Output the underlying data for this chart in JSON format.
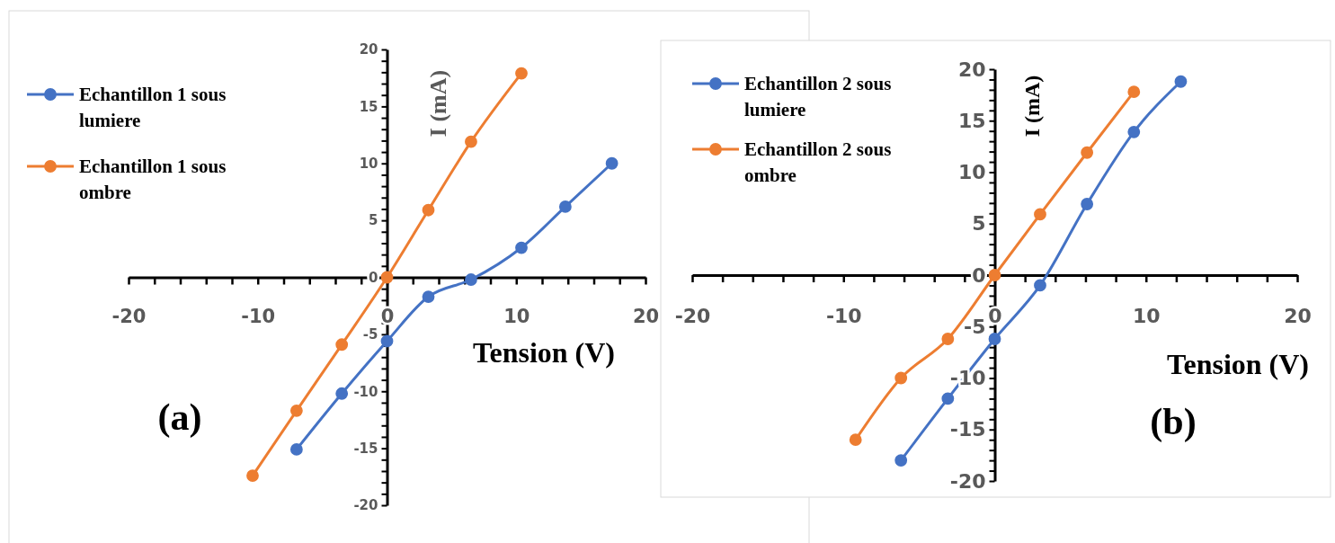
{
  "chart_data": [
    {
      "type": "line",
      "xlabel": "Tension (V)",
      "ylabel": "I (mA)",
      "annotations": [
        "(a)"
      ],
      "legend": "top left",
      "marker": "circle",
      "line_style": "solid",
      "grid": false,
      "xlim": [
        -20,
        20
      ],
      "ylim": [
        -20,
        20
      ],
      "xticks": [
        -20,
        {
          "value": -18,
          "label": null
        },
        {
          "value": -16,
          "label": null
        },
        {
          "value": -14,
          "label": null
        },
        {
          "value": -12,
          "label": null
        },
        -10,
        {
          "value": -8,
          "label": null
        },
        {
          "value": -6,
          "label": null
        },
        {
          "value": -4,
          "label": null
        },
        {
          "value": -2,
          "label": null
        },
        0,
        {
          "value": 2,
          "label": null
        },
        {
          "value": 4,
          "label": null
        },
        {
          "value": 6,
          "label": null
        },
        {
          "value": 8,
          "label": null
        },
        10,
        {
          "value": 12,
          "label": null
        },
        {
          "value": 14,
          "label": null
        },
        {
          "value": 16,
          "label": null
        },
        {
          "value": 18,
          "label": null
        },
        20
      ],
      "yticks": [
        -20,
        {
          "value": -19,
          "label": null
        },
        {
          "value": -18,
          "label": null
        },
        {
          "value": -17,
          "label": null
        },
        {
          "value": -16,
          "label": null
        },
        -15,
        {
          "value": -14,
          "label": null
        },
        {
          "value": -13,
          "label": null
        },
        {
          "value": -12,
          "label": null
        },
        {
          "value": -11,
          "label": null
        },
        -10,
        {
          "value": -9,
          "label": null
        },
        {
          "value": -8,
          "label": null
        },
        {
          "value": -7,
          "label": null
        },
        {
          "value": -6,
          "label": null
        },
        -5,
        {
          "value": -4,
          "label": null
        },
        {
          "value": -3,
          "label": null
        },
        {
          "value": -2,
          "label": null
        },
        {
          "value": -1,
          "label": null
        },
        0,
        {
          "value": 1,
          "label": null
        },
        {
          "value": 2,
          "label": null
        },
        {
          "value": 3,
          "label": null
        },
        {
          "value": 4,
          "label": null
        },
        5,
        {
          "value": 6,
          "label": null
        },
        {
          "value": 7,
          "label": null
        },
        {
          "value": 8,
          "label": null
        },
        {
          "value": 9,
          "label": null
        },
        10,
        {
          "value": 11,
          "label": null
        },
        {
          "value": 12,
          "label": null
        },
        {
          "value": 13,
          "label": null
        },
        {
          "value": 14,
          "label": null
        },
        15,
        {
          "value": 16,
          "label": null
        },
        {
          "value": 17,
          "label": null
        },
        {
          "value": 18,
          "label": null
        },
        {
          "value": 19,
          "label": null
        },
        20
      ],
      "series": [
        {
          "name": "Echantillon 1 sous lumiere",
          "color": "#4472c4",
          "x": [
            -7,
            -3.5,
            0,
            3.2,
            6.5,
            10.4,
            13.8,
            17.4
          ],
          "values": [
            -15.1,
            -10.2,
            -5.6,
            -1.7,
            -0.2,
            2.6,
            6.2,
            10
          ]
        },
        {
          "name": "Echantillon 1 sous ombre",
          "color": "#ed7d31",
          "x": [
            -10.4,
            -7,
            -3.5,
            0,
            3.2,
            6.5,
            10.4
          ],
          "values": [
            -17.4,
            -11.7,
            -5.9,
            0,
            5.9,
            11.9,
            17.9
          ]
        }
      ]
    },
    {
      "type": "line",
      "xlabel": "Tension (V)",
      "ylabel": "I (mA)",
      "annotations": [
        "(b)"
      ],
      "legend": "top left",
      "marker": "circle",
      "line_style": "solid",
      "grid": false,
      "xlim": [
        -20,
        20
      ],
      "ylim": [
        -20,
        20
      ],
      "xticks": [
        -20,
        {
          "value": -18,
          "label": null
        },
        {
          "value": -16,
          "label": null
        },
        {
          "value": -14,
          "label": null
        },
        {
          "value": -12,
          "label": null
        },
        -10,
        {
          "value": -8,
          "label": null
        },
        {
          "value": -6,
          "label": null
        },
        {
          "value": -4,
          "label": null
        },
        {
          "value": -2,
          "label": null
        },
        0,
        {
          "value": 2,
          "label": null
        },
        {
          "value": 4,
          "label": null
        },
        {
          "value": 6,
          "label": null
        },
        {
          "value": 8,
          "label": null
        },
        10,
        {
          "value": 12,
          "label": null
        },
        {
          "value": 14,
          "label": null
        },
        {
          "value": 16,
          "label": null
        },
        {
          "value": 18,
          "label": null
        },
        20
      ],
      "yticks": [
        -20,
        {
          "value": -19,
          "label": null
        },
        {
          "value": -18,
          "label": null
        },
        {
          "value": -17,
          "label": null
        },
        {
          "value": -16,
          "label": null
        },
        -15,
        {
          "value": -14,
          "label": null
        },
        {
          "value": -13,
          "label": null
        },
        {
          "value": -12,
          "label": null
        },
        {
          "value": -11,
          "label": null
        },
        -10,
        {
          "value": -9,
          "label": null
        },
        {
          "value": -8,
          "label": null
        },
        {
          "value": -7,
          "label": null
        },
        {
          "value": -6,
          "label": null
        },
        -5,
        {
          "value": -4,
          "label": null
        },
        {
          "value": -3,
          "label": null
        },
        {
          "value": -2,
          "label": null
        },
        {
          "value": -1,
          "label": null
        },
        0,
        {
          "value": 1,
          "label": null
        },
        {
          "value": 2,
          "label": null
        },
        {
          "value": 3,
          "label": null
        },
        {
          "value": 4,
          "label": null
        },
        5,
        {
          "value": 6,
          "label": null
        },
        {
          "value": 7,
          "label": null
        },
        {
          "value": 8,
          "label": null
        },
        {
          "value": 9,
          "label": null
        },
        10,
        {
          "value": 11,
          "label": null
        },
        {
          "value": 12,
          "label": null
        },
        {
          "value": 13,
          "label": null
        },
        {
          "value": 14,
          "label": null
        },
        15,
        {
          "value": 16,
          "label": null
        },
        {
          "value": 17,
          "label": null
        },
        {
          "value": 18,
          "label": null
        },
        {
          "value": 19,
          "label": null
        },
        20
      ],
      "series": [
        {
          "name": "Echantillon 2 sous lumiere",
          "color": "#4472c4",
          "x": [
            -6.2,
            -3.1,
            0,
            3,
            6.1,
            9.2,
            12.3
          ],
          "values": [
            -18,
            -12,
            -6.2,
            -1,
            6.9,
            13.9,
            18.8
          ]
        },
        {
          "name": "Echantillon 2 sous ombre",
          "color": "#ed7d31",
          "x": [
            -9.2,
            -6.2,
            -3.1,
            0,
            3,
            6.1,
            9.2
          ],
          "values": [
            -16,
            -10,
            -6.2,
            0,
            5.9,
            11.9,
            17.8
          ]
        }
      ]
    }
  ]
}
